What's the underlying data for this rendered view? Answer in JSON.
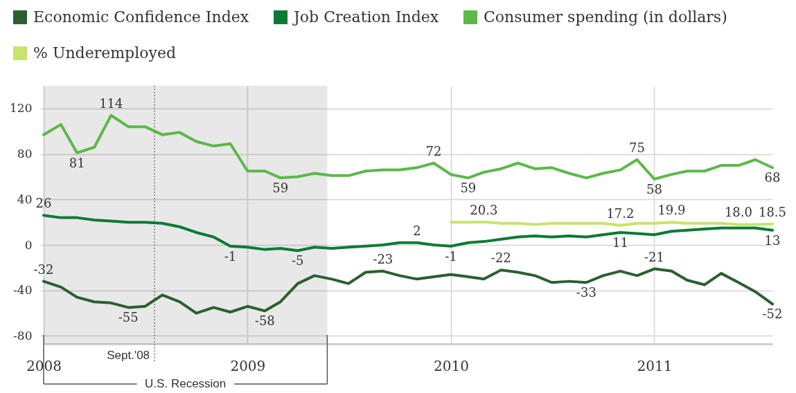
{
  "chart_data": {
    "type": "line",
    "x": [
      "2008-01",
      "2008-02",
      "2008-03",
      "2008-04",
      "2008-05",
      "2008-06",
      "2008-07",
      "2008-08",
      "2008-09",
      "2008-10",
      "2008-11",
      "2008-12",
      "2009-01",
      "2009-02",
      "2009-03",
      "2009-04",
      "2009-05",
      "2009-06",
      "2009-07",
      "2009-08",
      "2009-09",
      "2009-10",
      "2009-11",
      "2009-12",
      "2010-01",
      "2010-02",
      "2010-03",
      "2010-04",
      "2010-05",
      "2010-06",
      "2010-07",
      "2010-08",
      "2010-09",
      "2010-10",
      "2010-11",
      "2010-12",
      "2011-01",
      "2011-02",
      "2011-03",
      "2011-04",
      "2011-05",
      "2011-06",
      "2011-07",
      "2011-08"
    ],
    "xlim": [
      "2008-01",
      "2011-08"
    ],
    "xticks": [
      "2008",
      "2009",
      "2010",
      "2011"
    ],
    "ylim": [
      -87,
      140
    ],
    "yticks": [
      -80,
      -40,
      0,
      40,
      80,
      120
    ],
    "grid": true,
    "legend": "top left",
    "series": [
      {
        "name": "Economic Confidence Index",
        "color": "#2b5f30",
        "values": [
          -32,
          -37,
          -46,
          -50,
          -51,
          -55,
          -54,
          -44,
          -50,
          -60,
          -55,
          -59,
          -54,
          -58,
          -50,
          -34,
          -27,
          -30,
          -34,
          -24,
          -23,
          -27,
          -30,
          -28,
          -26,
          -28,
          -30,
          -22,
          -24,
          -27,
          -33,
          -32,
          -33,
          -27,
          -23,
          -27,
          -21,
          -23,
          -31,
          -35,
          -25,
          -33,
          -41,
          -52
        ],
        "value_labels": [
          "-32",
          null,
          null,
          null,
          null,
          "-55",
          null,
          null,
          null,
          null,
          null,
          null,
          null,
          "-58",
          null,
          null,
          null,
          null,
          null,
          null,
          "-23",
          null,
          null,
          null,
          null,
          null,
          null,
          "-22",
          null,
          null,
          null,
          null,
          "-33",
          null,
          null,
          null,
          "-21",
          null,
          null,
          null,
          null,
          null,
          null,
          "-52"
        ]
      },
      {
        "name": "Job Creation Index",
        "color": "#0b7a34",
        "values": [
          26,
          24,
          24,
          22,
          21,
          20,
          20,
          19,
          16,
          11,
          7,
          -1,
          -2,
          -4,
          -3,
          -5,
          -2,
          -3,
          -2,
          -1,
          0,
          2,
          2,
          0,
          -1,
          2,
          3,
          5,
          7,
          8,
          7,
          8,
          7,
          9,
          11,
          10,
          9,
          12,
          13,
          14,
          15,
          15,
          15,
          13
        ],
        "value_labels": [
          "26",
          null,
          null,
          null,
          null,
          null,
          null,
          null,
          null,
          null,
          null,
          "-1",
          null,
          null,
          null,
          "-5",
          null,
          null,
          null,
          null,
          null,
          null,
          "2",
          null,
          "-1",
          null,
          null,
          null,
          null,
          null,
          null,
          null,
          null,
          null,
          "11",
          null,
          null,
          null,
          null,
          null,
          null,
          null,
          null,
          "13"
        ]
      },
      {
        "name": "Consumer spending (in dollars)",
        "color": "#5cb84a",
        "values": [
          97,
          106,
          81,
          86,
          114,
          104,
          104,
          97,
          99,
          91,
          87,
          89,
          65,
          65,
          59,
          60,
          63,
          61,
          61,
          65,
          66,
          66,
          68,
          72,
          62,
          59,
          64,
          67,
          72,
          67,
          68,
          63,
          59,
          63,
          66,
          75,
          58,
          62,
          65,
          65,
          70,
          70,
          75,
          68
        ],
        "value_labels": [
          null,
          null,
          "81",
          null,
          "114",
          null,
          null,
          null,
          null,
          null,
          null,
          null,
          null,
          null,
          "59",
          null,
          null,
          null,
          null,
          null,
          null,
          null,
          null,
          "72",
          null,
          "59",
          null,
          null,
          null,
          null,
          null,
          null,
          null,
          null,
          null,
          "75",
          "58",
          null,
          null,
          null,
          null,
          null,
          null,
          "68"
        ]
      },
      {
        "name": "% Underemployed",
        "color": "#c6e46e",
        "values": [
          null,
          null,
          null,
          null,
          null,
          null,
          null,
          null,
          null,
          null,
          null,
          null,
          null,
          null,
          null,
          null,
          null,
          null,
          null,
          null,
          null,
          null,
          null,
          null,
          20,
          20,
          20.3,
          19,
          19,
          18,
          19,
          19,
          19,
          19,
          17.2,
          19,
          19,
          19.9,
          19,
          19,
          19,
          18.0,
          18,
          18.5
        ],
        "value_labels": [
          null,
          null,
          null,
          null,
          null,
          null,
          null,
          null,
          null,
          null,
          null,
          null,
          null,
          null,
          null,
          null,
          null,
          null,
          null,
          null,
          null,
          null,
          null,
          null,
          null,
          null,
          "20.3",
          null,
          null,
          null,
          null,
          null,
          null,
          null,
          "17.2",
          null,
          null,
          "19.9",
          null,
          null,
          null,
          "18.0",
          null,
          "18.5"
        ]
      }
    ],
    "ref_lines": [
      {
        "axis": "x",
        "value": "2008-07-18",
        "label": "Sept.'08",
        "color": "#555555",
        "line_style": "dotted"
      }
    ],
    "bands": [
      {
        "axis": "x",
        "from": "2008-01",
        "to": "2009-05-24",
        "label": "U.S. Recession",
        "color": "#e8e8e8"
      }
    ]
  }
}
